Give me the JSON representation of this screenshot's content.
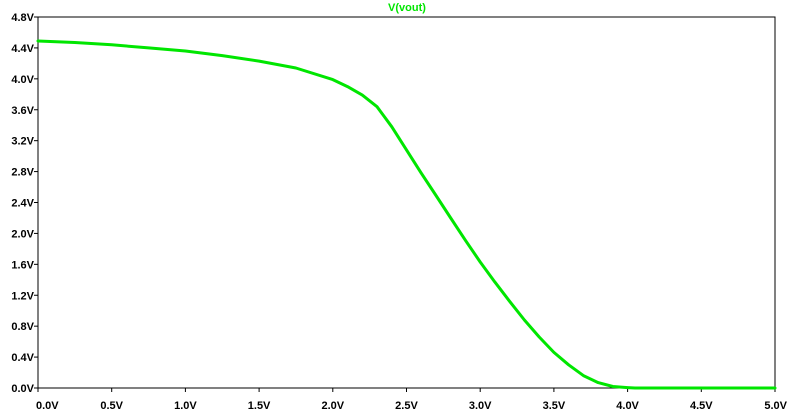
{
  "chart_data": {
    "type": "line",
    "title": "",
    "xlabel": "",
    "ylabel": "",
    "xlim": [
      0,
      5
    ],
    "ylim": [
      0,
      4.8
    ],
    "grid": false,
    "series": [
      {
        "name": "V(vout)",
        "color": "#00e600",
        "x": [
          0.0,
          0.25,
          0.5,
          0.75,
          1.0,
          1.25,
          1.5,
          1.75,
          2.0,
          2.1,
          2.2,
          2.3,
          2.4,
          2.5,
          2.6,
          2.7,
          2.8,
          2.9,
          3.0,
          3.1,
          3.2,
          3.3,
          3.4,
          3.5,
          3.6,
          3.7,
          3.8,
          3.9,
          4.0,
          4.05,
          4.1,
          4.5,
          5.0
        ],
        "y": [
          4.49,
          4.47,
          4.44,
          4.4,
          4.36,
          4.3,
          4.23,
          4.14,
          3.99,
          3.9,
          3.79,
          3.64,
          3.38,
          3.08,
          2.78,
          2.49,
          2.2,
          1.91,
          1.63,
          1.37,
          1.12,
          0.88,
          0.66,
          0.46,
          0.3,
          0.16,
          0.07,
          0.02,
          0.005,
          0.0,
          0.0,
          0.0,
          0.0
        ]
      }
    ],
    "x_ticks": [
      {
        "value": 0.0,
        "label": "0.0V"
      },
      {
        "value": 0.5,
        "label": "0.5V"
      },
      {
        "value": 1.0,
        "label": "1.0V"
      },
      {
        "value": 1.5,
        "label": "1.5V"
      },
      {
        "value": 2.0,
        "label": "2.0V"
      },
      {
        "value": 2.5,
        "label": "2.5V"
      },
      {
        "value": 3.0,
        "label": "3.0V"
      },
      {
        "value": 3.5,
        "label": "3.5V"
      },
      {
        "value": 4.0,
        "label": "4.0V"
      },
      {
        "value": 4.5,
        "label": "4.5V"
      },
      {
        "value": 5.0,
        "label": "5.0V"
      }
    ],
    "y_ticks": [
      {
        "value": 0.0,
        "label": "0.0V"
      },
      {
        "value": 0.4,
        "label": "0.4V"
      },
      {
        "value": 0.8,
        "label": "0.8V"
      },
      {
        "value": 1.2,
        "label": "1.2V"
      },
      {
        "value": 1.6,
        "label": "1.6V"
      },
      {
        "value": 2.0,
        "label": "2.0V"
      },
      {
        "value": 2.4,
        "label": "2.4V"
      },
      {
        "value": 2.8,
        "label": "2.8V"
      },
      {
        "value": 3.2,
        "label": "3.2V"
      },
      {
        "value": 3.6,
        "label": "3.6V"
      },
      {
        "value": 4.0,
        "label": "4.0V"
      },
      {
        "value": 4.4,
        "label": "4.4V"
      },
      {
        "value": 4.8,
        "label": "4.8V"
      }
    ]
  }
}
